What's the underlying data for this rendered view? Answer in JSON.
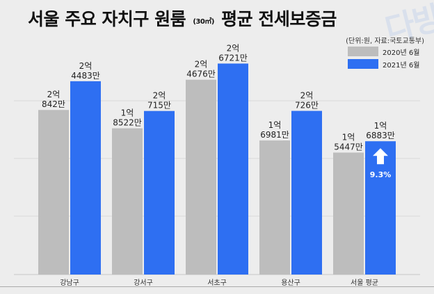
{
  "title": {
    "main_before": "서울 주요 자치구 원룸",
    "unit": "(30㎡)",
    "main_after": "평균 전세보증금"
  },
  "watermark": "다방",
  "unit_note": "(단위:원, 자료:국토교통부)",
  "arrow_label": "9.3%",
  "colors": {
    "series_2020": "#bdbdbd",
    "series_2021": "#2e6ff2",
    "background": "#ededed",
    "arrow": "#ffffff"
  },
  "chart_data": {
    "type": "bar",
    "title": "서울 주요 자치구 원룸 (30㎡) 평균 전세보증금",
    "categories": [
      "강남구",
      "강서구",
      "서초구",
      "용산구",
      "서울 평균"
    ],
    "series": [
      {
        "name": "2020년 6월",
        "values": [
          20842,
          18522,
          24676,
          16981,
          15447
        ],
        "labels": [
          [
            "2억",
            "842만"
          ],
          [
            "1억",
            "8522만"
          ],
          [
            "2억",
            "4676만"
          ],
          [
            "1억",
            "6981만"
          ],
          [
            "1억",
            "5447만"
          ]
        ]
      },
      {
        "name": "2021년 6월",
        "values": [
          24483,
          20715,
          26721,
          20726,
          16883
        ],
        "labels": [
          [
            "2억",
            "4483만"
          ],
          [
            "2억",
            "715만"
          ],
          [
            "2억",
            "6721만"
          ],
          [
            "2억",
            "726만"
          ],
          [
            "1억",
            "6883만"
          ]
        ]
      }
    ],
    "unit": "만원",
    "grid": true,
    "legend": "top-right",
    "annotation": {
      "category": "서울 평균",
      "text": "9.3%",
      "direction": "up"
    }
  }
}
